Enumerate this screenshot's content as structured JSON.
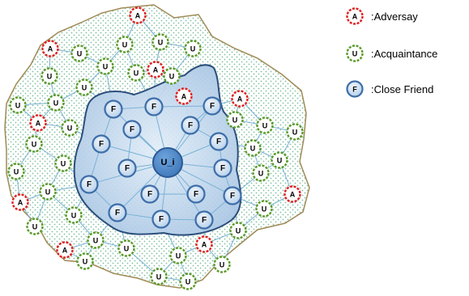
{
  "legend": {
    "items": [
      {
        "symbol": "A",
        "label": ":Adversay",
        "kind": "adversary"
      },
      {
        "symbol": "U",
        "label": ":Acquaintance",
        "kind": "acquaintance"
      },
      {
        "symbol": "F",
        "label": ":Close Friend",
        "kind": "friend"
      }
    ]
  },
  "center": {
    "label": "U_i"
  },
  "node_labels": {
    "adversary": "A",
    "acquaintance": "U",
    "friend": "F"
  },
  "colors": {
    "adversary_ring": "#e02020",
    "acquaintance_ring": "#5a9a2a",
    "friend_ring": "#3d6ea8",
    "friend_fill": "#c5d9ef",
    "center_fill": "#4a86c8",
    "outer_border": "#a08a55",
    "outer_dots": "#7fbf9f",
    "inner_fill": "#bcd3ea",
    "inner_border": "#2b4f7c",
    "edge": "#7ab2d6"
  }
}
